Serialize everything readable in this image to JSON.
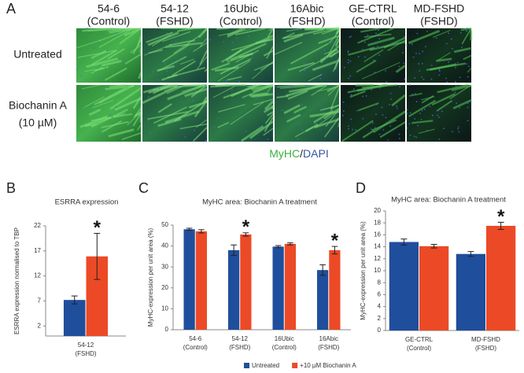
{
  "panel_a": {
    "label": "A",
    "columns": [
      [
        "54-6",
        "(Control)"
      ],
      [
        "54-12",
        "(FSHD)"
      ],
      [
        "16Ubic",
        "(Control)"
      ],
      [
        "16Abic",
        "(FSHD)"
      ],
      [
        "GE-CTRL",
        "(Control)"
      ],
      [
        "MD-FSHD",
        "(FSHD)"
      ]
    ],
    "rows": [
      [
        "Untreated"
      ],
      [
        "Biochanin A",
        "(10 µM)"
      ]
    ],
    "stain": {
      "myhc": "MyHC",
      "sep": "/",
      "dapi": "DAPI"
    }
  },
  "chart_data": [
    {
      "type": "bar",
      "panel_label": "B",
      "title": "ESRRA expression",
      "y_label": "ESRRA expression normalised to TBP",
      "categories": [
        [
          "54-12",
          "(FSHD)"
        ]
      ],
      "series": [
        {
          "color": "#1f4e9c",
          "values": [
            7.2
          ],
          "errors": [
            0.8
          ]
        },
        {
          "color": "#ec4a26",
          "values": [
            15.9
          ],
          "errors": [
            4.6
          ]
        }
      ],
      "significance": [
        "*"
      ],
      "ylim": [
        0,
        22
      ],
      "yticks": [
        2,
        7,
        12,
        17,
        22
      ]
    },
    {
      "type": "bar",
      "panel_label": "C",
      "title": "MyHC area: Biochanin A treatment",
      "y_label": "MyHC-expression per unit area (%)",
      "categories": [
        [
          "54-6",
          "(Control)"
        ],
        [
          "54-12",
          "(FSHD)"
        ],
        [
          "16Ubic",
          "(Control)"
        ],
        [
          "16Abic",
          "(FSHD)"
        ]
      ],
      "series": [
        {
          "name": "Untreated",
          "color": "#1f4e9c",
          "values": [
            48,
            38,
            39.7,
            28.5
          ],
          "errors": [
            0.5,
            2.5,
            0.5,
            2.5
          ]
        },
        {
          "name": "+10 µM Biochanin A",
          "color": "#ec4a26",
          "values": [
            47,
            45.5,
            41,
            38
          ],
          "errors": [
            0.8,
            0.8,
            0.5,
            1.8
          ]
        }
      ],
      "significance": [
        null,
        "*",
        null,
        "*"
      ],
      "legend": "bottom",
      "ylim": [
        0,
        50
      ],
      "yticks": [
        0,
        10,
        20,
        30,
        40,
        50
      ]
    },
    {
      "type": "bar",
      "panel_label": "D",
      "title": "MyHC area: Biochanin A treatment",
      "y_label": "MyHC-expression per unit area (%)",
      "categories": [
        [
          "GE-CTRL",
          "(Control)"
        ],
        [
          "MD-FSHD",
          "(FSHD)"
        ]
      ],
      "series": [
        {
          "color": "#1f4e9c",
          "values": [
            14.8,
            12.8
          ],
          "errors": [
            0.5,
            0.4
          ]
        },
        {
          "color": "#ec4a26",
          "values": [
            14.1,
            17.5
          ],
          "errors": [
            0.3,
            0.6
          ]
        }
      ],
      "significance": [
        null,
        "*"
      ],
      "ylim": [
        0,
        20
      ],
      "yticks": [
        0,
        2,
        4,
        6,
        8,
        10,
        12,
        14,
        16,
        18,
        20
      ]
    }
  ]
}
